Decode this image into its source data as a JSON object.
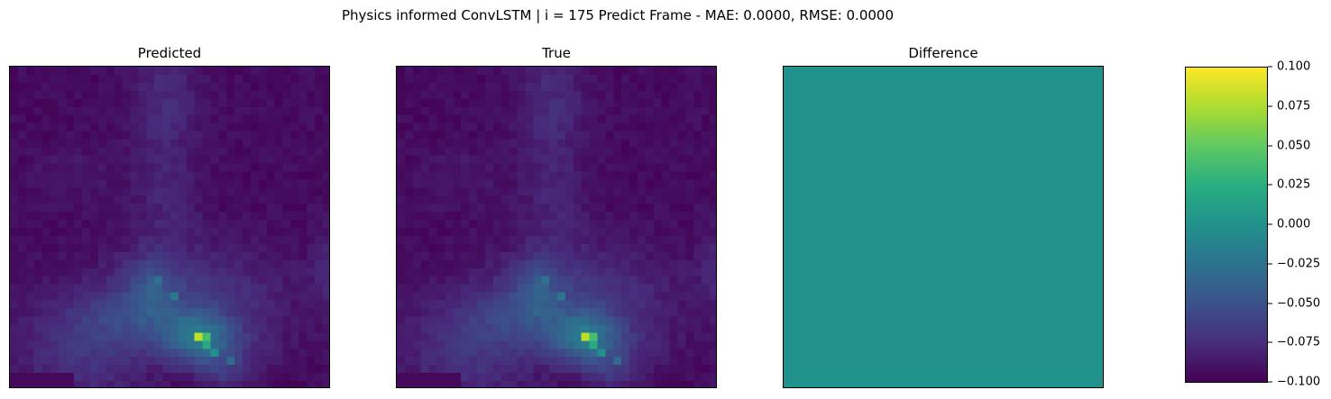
{
  "figure": {
    "suptitle": "Physics informed ConvLSTM | i = 175 Predict Frame - MAE: 0.0000, RMSE: 0.0000"
  },
  "chart_data": [
    {
      "type": "heatmap",
      "title": "Predicted",
      "grid_size": [
        40,
        40
      ],
      "colormap": "viridis",
      "field": "same_as_true"
    },
    {
      "type": "heatmap",
      "title": "True",
      "grid_size": [
        40,
        40
      ],
      "colormap": "viridis"
    },
    {
      "type": "heatmap",
      "title": "Difference",
      "grid_size": [
        40,
        40
      ],
      "colormap": "viridis",
      "value": 0.0,
      "color": "#21918c"
    }
  ],
  "colorbar": {
    "vmin": -0.1,
    "vmax": 0.1,
    "colormap": "viridis",
    "ticks": [
      {
        "value": 0.1,
        "label": "0.100"
      },
      {
        "value": 0.075,
        "label": "0.075"
      },
      {
        "value": 0.05,
        "label": "0.050"
      },
      {
        "value": 0.025,
        "label": "0.025"
      },
      {
        "value": 0.0,
        "label": "0.000"
      },
      {
        "value": -0.025,
        "label": "−0.025"
      },
      {
        "value": -0.05,
        "label": "−0.050"
      },
      {
        "value": -0.075,
        "label": "−0.075"
      },
      {
        "value": -0.1,
        "label": "−0.100"
      }
    ]
  }
}
